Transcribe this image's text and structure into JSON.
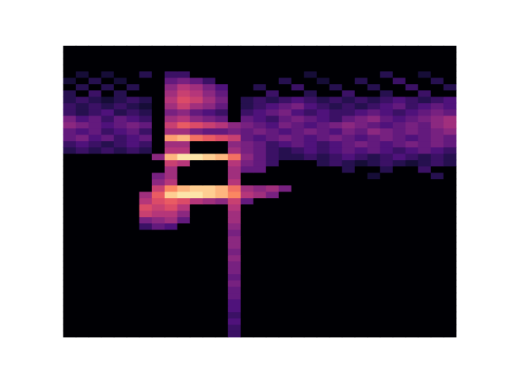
{
  "chart_data": {
    "type": "heatmap",
    "tick_labels": false,
    "color": "magma",
    "x_bins": 31,
    "y_bins": 46,
    "color_range": [
      0,
      1
    ],
    "cells": [
      {
        "y": 41,
        "x0": 1,
        "values": [
          0.1
        ]
      },
      {
        "y": 41,
        "x0": 3,
        "values": [
          0.1
        ]
      },
      {
        "y": 41,
        "x0": 6,
        "values": [
          0.15
        ]
      },
      {
        "y": 41,
        "x0": 8,
        "values": [
          0.2,
          0.2
        ]
      },
      {
        "y": 41,
        "x0": 19,
        "values": [
          0.1
        ]
      },
      {
        "y": 41,
        "x0": 25,
        "values": [
          0.15
        ]
      },
      {
        "y": 41,
        "x0": 28,
        "values": [
          0.1
        ]
      },
      {
        "y": 40,
        "x0": 0,
        "values": [
          0.1
        ]
      },
      {
        "y": 40,
        "x0": 2,
        "values": [
          0.15
        ]
      },
      {
        "y": 40,
        "x0": 4,
        "values": [
          0.1
        ]
      },
      {
        "y": 40,
        "x0": 8,
        "values": [
          0.3,
          0.35,
          0.3,
          0.2
        ]
      },
      {
        "y": 40,
        "x0": 17,
        "values": [
          0.15
        ]
      },
      {
        "y": 40,
        "x0": 20,
        "values": [
          0.1
        ]
      },
      {
        "y": 40,
        "x0": 23,
        "values": [
          0.15
        ]
      },
      {
        "y": 40,
        "x0": 26,
        "values": [
          0.2
        ]
      },
      {
        "y": 40,
        "x0": 29,
        "values": [
          0.15
        ]
      },
      {
        "y": 39,
        "x0": 1,
        "values": [
          0.15
        ]
      },
      {
        "y": 39,
        "x0": 3,
        "values": [
          0.15
        ]
      },
      {
        "y": 39,
        "x0": 5,
        "values": [
          0.15
        ]
      },
      {
        "y": 39,
        "x0": 8,
        "values": [
          0.4,
          0.5,
          0.45,
          0.35,
          0.25
        ]
      },
      {
        "y": 39,
        "x0": 15,
        "values": [
          0.15
        ]
      },
      {
        "y": 39,
        "x0": 18,
        "values": [
          0.2
        ]
      },
      {
        "y": 39,
        "x0": 21,
        "values": [
          0.15
        ]
      },
      {
        "y": 39,
        "x0": 24,
        "values": [
          0.15
        ]
      },
      {
        "y": 39,
        "x0": 27,
        "values": [
          0.2
        ]
      },
      {
        "y": 39,
        "x0": 30,
        "values": [
          0.15
        ]
      },
      {
        "y": 38,
        "x0": 0,
        "values": [
          0.15
        ]
      },
      {
        "y": 38,
        "x0": 2,
        "values": [
          0.2
        ]
      },
      {
        "y": 38,
        "x0": 4,
        "values": [
          0.15
        ]
      },
      {
        "y": 38,
        "x0": 8,
        "values": [
          0.45,
          0.55,
          0.5,
          0.4,
          0.3
        ]
      },
      {
        "y": 38,
        "x0": 16,
        "values": [
          0.2
        ]
      },
      {
        "y": 38,
        "x0": 19,
        "values": [
          0.15
        ]
      },
      {
        "y": 38,
        "x0": 22,
        "values": [
          0.2
        ]
      },
      {
        "y": 38,
        "x0": 25,
        "values": [
          0.15
        ]
      },
      {
        "y": 38,
        "x0": 28,
        "values": [
          0.2
        ]
      },
      {
        "y": 37,
        "x0": 0,
        "values": [
          0.15,
          0.2,
          0.15,
          0.1,
          0.15,
          0.2,
          0.15
        ]
      },
      {
        "y": 37,
        "x0": 8,
        "values": [
          0.5,
          0.6,
          0.55,
          0.45,
          0.35
        ]
      },
      {
        "y": 37,
        "x0": 14,
        "values": [
          0.15,
          0.2,
          0.15,
          0.2,
          0.25,
          0.2,
          0.15,
          0.2,
          0.15,
          0.2,
          0.15,
          0.2,
          0.25,
          0.2,
          0.15,
          0.2,
          0.25
        ]
      },
      {
        "y": 36,
        "x0": 0,
        "values": [
          0.2,
          0.15,
          0.2,
          0.15,
          0.2,
          0.15,
          0.1
        ]
      },
      {
        "y": 36,
        "x0": 8,
        "values": [
          0.45,
          0.55,
          0.45,
          0.4,
          0.3
        ]
      },
      {
        "y": 36,
        "x0": 14,
        "values": [
          0.15,
          0.2,
          0.25,
          0.3,
          0.35,
          0.25,
          0.2,
          0.15,
          0.2,
          0.15,
          0.2,
          0.25,
          0.3,
          0.2,
          0.25,
          0.3,
          0.25
        ]
      },
      {
        "y": 35,
        "x0": 0,
        "values": [
          0.2,
          0.15,
          0.2,
          0.25,
          0.15,
          0.2,
          0.15
        ]
      },
      {
        "y": 35,
        "x0": 8,
        "values": [
          0.35,
          0.4,
          0.3,
          0.25,
          0.2
        ]
      },
      {
        "y": 35,
        "x0": 14,
        "values": [
          0.2,
          0.25,
          0.3,
          0.35,
          0.25,
          0.2,
          0.25,
          0.2,
          0.2,
          0.25,
          0.3,
          0.25,
          0.2,
          0.25,
          0.3,
          0.35,
          0.3
        ]
      },
      {
        "y": 34,
        "x0": 0,
        "values": [
          0.35,
          0.25,
          0.3,
          0.2,
          0.3,
          0.25,
          0.2
        ]
      },
      {
        "y": 34,
        "x0": 8,
        "values": [
          0.45,
          0.5,
          0.4,
          0.35,
          0.3
        ]
      },
      {
        "y": 34,
        "x0": 14,
        "values": [
          0.3,
          0.25,
          0.2,
          0.3,
          0.35,
          0.3,
          0.25,
          0.2,
          0.3,
          0.35,
          0.4,
          0.3,
          0.25,
          0.3,
          0.35,
          0.4,
          0.45
        ]
      },
      {
        "y": 33,
        "x0": 0,
        "values": [
          0.4,
          0.35,
          0.3,
          0.25,
          0.3,
          0.35,
          0.3
        ]
      },
      {
        "y": 33,
        "x0": 8,
        "values": [
          0.55,
          0.65,
          0.6,
          0.55,
          0.5,
          0.4
        ]
      },
      {
        "y": 33,
        "x0": 14,
        "values": [
          0.35,
          0.3,
          0.25,
          0.35,
          0.3,
          0.25,
          0.3,
          0.35,
          0.4,
          0.35,
          0.3,
          0.25,
          0.3,
          0.35,
          0.3,
          0.4,
          0.45
        ]
      },
      {
        "y": 32,
        "x0": 0,
        "values": [
          0.3,
          0.25,
          0.3,
          0.2,
          0.25,
          0.3,
          0.2
        ]
      },
      {
        "y": 32,
        "x0": 8,
        "values": [
          0.45,
          0.45,
          0.35,
          0.3,
          0.3,
          0.35
        ]
      },
      {
        "y": 32,
        "x0": 14,
        "values": [
          0.3,
          0.35,
          0.3,
          0.25,
          0.3,
          0.35,
          0.3,
          0.25,
          0.35,
          0.3,
          0.4,
          0.35,
          0.3,
          0.35,
          0.3,
          0.35,
          0.4
        ]
      },
      {
        "y": 31,
        "x0": 0,
        "values": [
          0.3,
          0.35,
          0.25,
          0.3,
          0.2,
          0.25,
          0.3
        ]
      },
      {
        "y": 31,
        "x0": 8,
        "values": [
          0.8,
          0.85,
          0.7,
          0.65,
          0.6,
          0.55
        ]
      },
      {
        "y": 31,
        "x0": 14,
        "values": [
          0.3,
          0.25,
          0.3,
          0.35,
          0.3,
          0.25,
          0.3,
          0.35,
          0.3,
          0.25,
          0.3,
          0.35,
          0.3,
          0.25,
          0.3,
          0.35,
          0.3
        ]
      },
      {
        "y": 30,
        "x0": 0,
        "values": [
          0.2,
          0.25,
          0.2,
          0.15,
          0.2,
          0.25,
          0.2
        ]
      },
      {
        "y": 30,
        "x0": 8,
        "values": [
          0.45,
          0.45
        ]
      },
      {
        "y": 30,
        "x0": 13,
        "values": [
          0.4,
          0.35,
          0.3,
          0.2,
          0.25,
          0.3,
          0.25,
          0.2,
          0.25,
          0.3,
          0.35,
          0.3,
          0.25,
          0.3,
          0.35,
          0.3,
          0.35,
          0.3
        ]
      },
      {
        "y": 29,
        "x0": 0,
        "values": [
          0.15,
          0.2,
          0.15,
          0.2,
          0.15,
          0.2,
          0.15
        ]
      },
      {
        "y": 29,
        "x0": 8,
        "values": [
          0.5,
          0.5
        ]
      },
      {
        "y": 29,
        "x0": 13,
        "values": [
          0.45,
          0.35,
          0.3,
          0.2,
          0.15,
          0.2,
          0.25,
          0.2,
          0.25,
          0.3,
          0.25,
          0.3,
          0.25,
          0.2,
          0.25,
          0.3,
          0.25,
          0.2
        ]
      },
      {
        "y": 28,
        "x0": 7,
        "values": [
          0.4,
          0.85,
          0.95,
          0.95,
          0.9,
          0.85,
          0.7,
          0.4,
          0.3,
          0.2,
          0.15,
          0.15,
          0.2,
          0.15,
          0.2,
          0.25,
          0.2,
          0.15,
          0.2,
          0.25,
          0.2,
          0.15,
          0.2,
          0.15
        ]
      },
      {
        "y": 27,
        "x0": 8,
        "values": [
          0.55,
          0.5
        ]
      },
      {
        "y": 27,
        "x0": 13,
        "values": [
          0.5,
          0.35,
          0.3,
          0.2
        ]
      },
      {
        "y": 27,
        "x0": 20,
        "values": [
          0.15,
          0.2,
          0.15,
          0.1,
          0.15,
          0.2,
          0.15,
          0.1,
          0.15,
          0.2,
          0.15
        ]
      },
      {
        "y": 26,
        "x0": 8,
        "values": [
          0.45
        ]
      },
      {
        "y": 26,
        "x0": 13,
        "values": [
          0.45,
          0.3,
          0.3
        ]
      },
      {
        "y": 26,
        "x0": 22,
        "values": [
          0.15
        ]
      },
      {
        "y": 26,
        "x0": 25,
        "values": [
          0.15
        ]
      },
      {
        "y": 26,
        "x0": 28,
        "values": [
          0.2
        ]
      },
      {
        "y": 25,
        "x0": 7,
        "values": [
          0.35,
          0.45
        ]
      },
      {
        "y": 25,
        "x0": 13,
        "values": [
          0.45
        ]
      },
      {
        "y": 25,
        "x0": 24,
        "values": [
          0.1
        ]
      },
      {
        "y": 25,
        "x0": 29,
        "values": [
          0.15
        ]
      },
      {
        "y": 24,
        "x0": 7,
        "values": [
          0.4,
          0.5
        ]
      },
      {
        "y": 24,
        "x0": 13,
        "values": [
          0.5
        ]
      },
      {
        "y": 23,
        "x0": 7,
        "values": [
          0.55,
          0.75,
          0.85,
          0.9,
          0.9,
          0.85,
          0.7,
          0.45,
          0.4,
          0.45,
          0.35
        ]
      },
      {
        "y": 22,
        "x0": 6,
        "values": [
          0.45,
          0.65,
          0.9,
          0.95,
          0.95,
          0.9,
          0.85,
          0.75,
          0.5,
          0.45,
          0.35
        ]
      },
      {
        "y": 21,
        "x0": 6,
        "values": [
          0.5,
          0.6,
          0.65,
          0.6,
          0.5,
          0.45,
          0.4,
          0.55,
          0.3
        ]
      },
      {
        "y": 20,
        "x0": 6,
        "values": [
          0.6,
          0.55,
          0.6,
          0.5
        ]
      },
      {
        "y": 20,
        "x0": 13,
        "values": [
          0.5
        ]
      },
      {
        "y": 19,
        "x0": 6,
        "values": [
          0.55,
          0.5,
          0.5,
          0.4
        ]
      },
      {
        "y": 19,
        "x0": 13,
        "values": [
          0.45
        ]
      },
      {
        "y": 18,
        "x0": 6,
        "values": [
          0.35,
          0.4,
          0.45,
          0.3
        ]
      },
      {
        "y": 18,
        "x0": 13,
        "values": [
          0.45
        ]
      },
      {
        "y": 17,
        "x0": 6,
        "values": [
          0.2,
          0.3,
          0.25
        ]
      },
      {
        "y": 17,
        "x0": 13,
        "values": [
          0.4
        ]
      },
      {
        "y": 16,
        "x0": 13,
        "values": [
          0.35
        ]
      },
      {
        "y": 15,
        "x0": 13,
        "values": [
          0.4
        ]
      },
      {
        "y": 14,
        "x0": 13,
        "values": [
          0.4
        ]
      },
      {
        "y": 13,
        "x0": 13,
        "values": [
          0.35
        ]
      },
      {
        "y": 12,
        "x0": 13,
        "values": [
          0.4
        ]
      },
      {
        "y": 11,
        "x0": 13,
        "values": [
          0.35
        ]
      },
      {
        "y": 10,
        "x0": 13,
        "values": [
          0.35
        ]
      },
      {
        "y": 9,
        "x0": 13,
        "values": [
          0.3
        ]
      },
      {
        "y": 8,
        "x0": 13,
        "values": [
          0.35
        ]
      },
      {
        "y": 7,
        "x0": 13,
        "values": [
          0.3
        ]
      },
      {
        "y": 6,
        "x0": 13,
        "values": [
          0.3
        ]
      },
      {
        "y": 5,
        "x0": 13,
        "values": [
          0.25
        ]
      },
      {
        "y": 4,
        "x0": 13,
        "values": [
          0.25
        ]
      },
      {
        "y": 3,
        "x0": 13,
        "values": [
          0.2
        ]
      },
      {
        "y": 2,
        "x0": 13,
        "values": [
          0.25
        ]
      },
      {
        "y": 1,
        "x0": 13,
        "values": [
          0.2
        ]
      },
      {
        "y": 0,
        "x0": 13,
        "values": [
          0.2
        ]
      }
    ]
  }
}
